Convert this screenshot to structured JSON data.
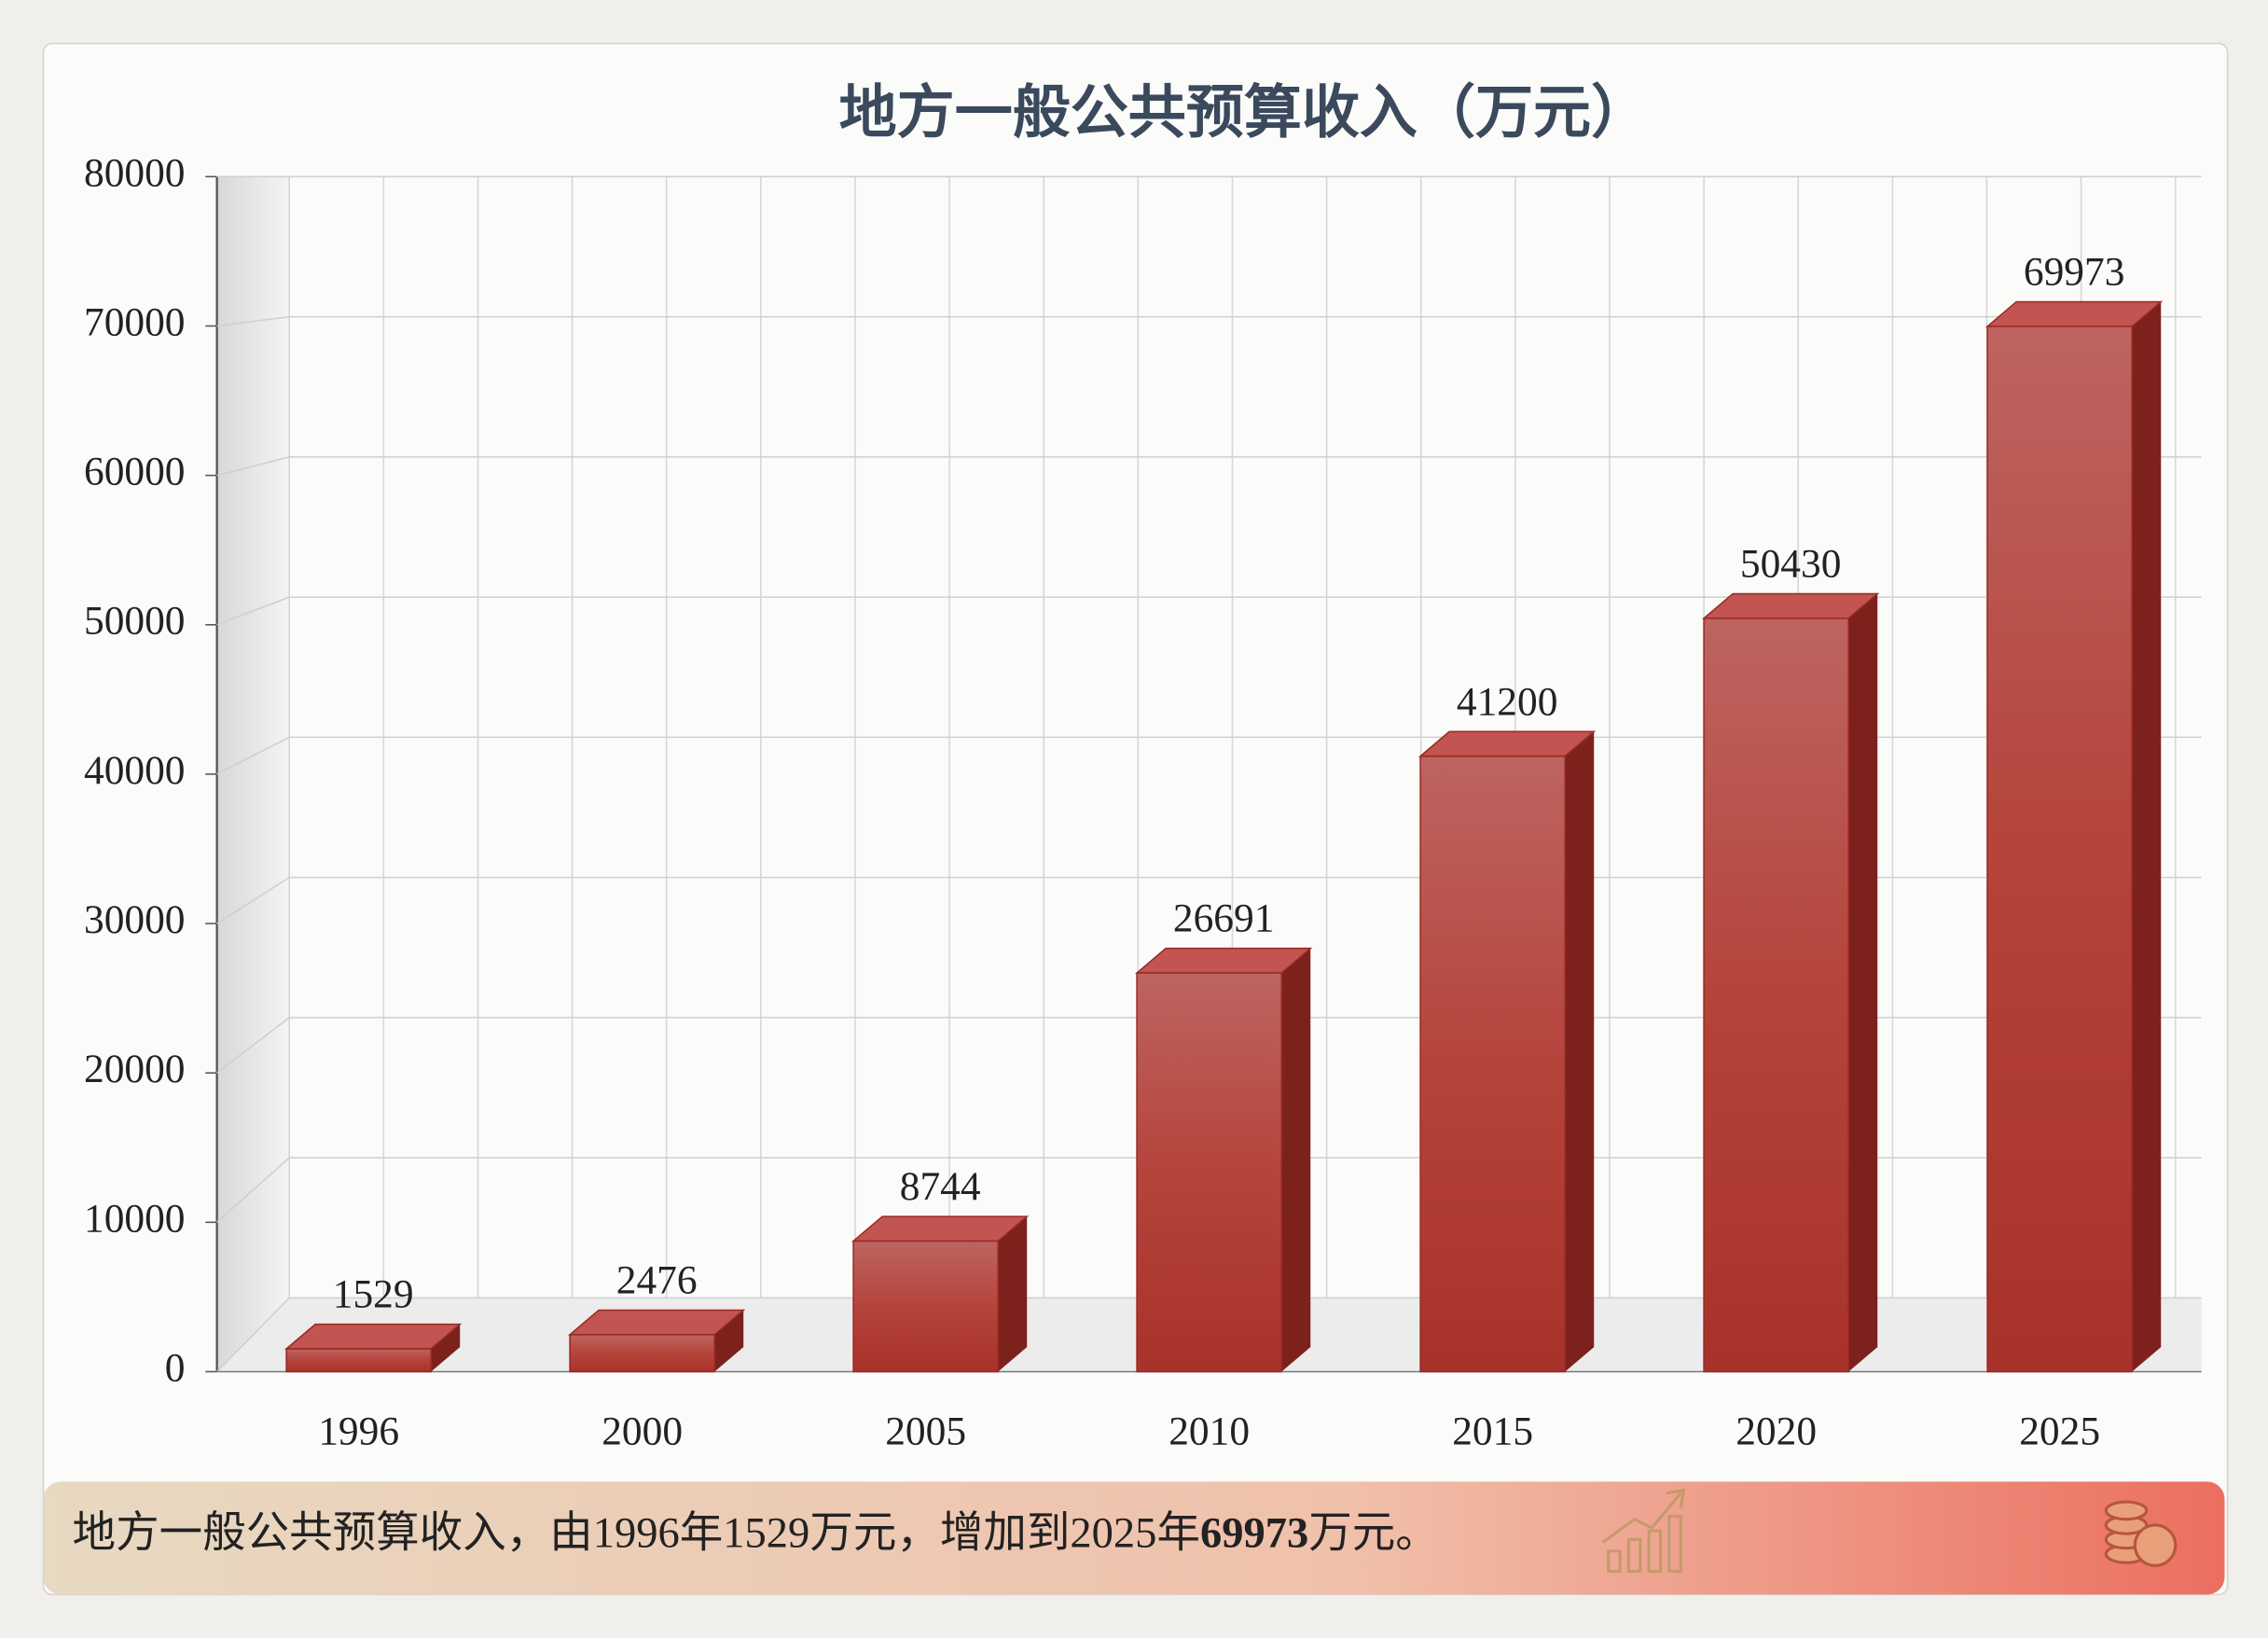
{
  "chart_data": {
    "type": "bar",
    "title": "地方一般公共预算收入（万元）",
    "categories": [
      "1996",
      "2000",
      "2005",
      "2010",
      "2015",
      "2020",
      "2025"
    ],
    "values": [
      1529,
      2476,
      8744,
      26691,
      41200,
      50430,
      69973
    ],
    "color": "#b73a32",
    "ylim": [
      0,
      80000
    ],
    "yticks": [
      0,
      10000,
      20000,
      30000,
      40000,
      50000,
      60000,
      70000,
      80000
    ],
    "grid": true,
    "caption": [
      "地方一般公共预算收入，由1996年1529万元，增加到2025年",
      "69973",
      "万元。"
    ]
  }
}
